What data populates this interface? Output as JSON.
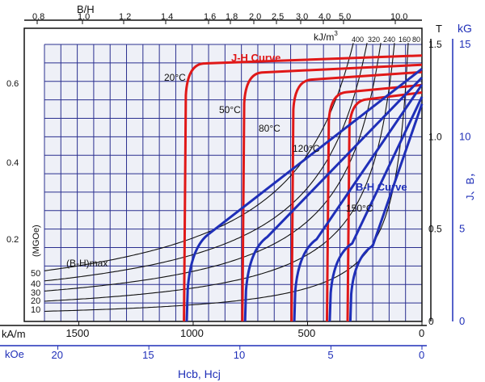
{
  "chart_data": {
    "type": "line",
    "x_axis": {
      "unit_kAm_label": "kA/m",
      "unit_kOe_label": "kOe",
      "title": "Hcb, Hcj",
      "range_kAm": [
        1650,
        0
      ],
      "ticks_kAm": [
        "1500",
        "1000",
        "500",
        "0"
      ],
      "ticks_kOe": [
        "20",
        "15",
        "10",
        "5",
        "0"
      ]
    },
    "y_axis_right": {
      "unit_T": "T",
      "unit_kG": "kG",
      "title": "J、B，",
      "range_T": [
        0,
        1.5
      ],
      "ticks_T": [
        "0",
        "0.5",
        "1.0",
        "1.5"
      ],
      "ticks_kG": [
        "0",
        "5",
        "10",
        "15"
      ]
    },
    "y_axis_left": {
      "title": "(MGOe)",
      "ticks": [
        "0.2",
        "0.4",
        "0.6"
      ]
    },
    "top_axis": {
      "title": "B/H",
      "ticks": [
        "0.8",
        "1.0",
        "1.2",
        "1.4",
        "1.6",
        "1.8",
        "2.0",
        "2.5",
        "3.0",
        "4.0",
        "5.0",
        "10.0"
      ]
    },
    "energy_product": {
      "label": "(B-H)max",
      "unit_prefix": "kJ/m",
      "unit_sup": "3",
      "left_ticks": [
        "50",
        "40",
        "30",
        "20",
        "10"
      ],
      "top_ticks": [
        "400",
        "320",
        "240",
        "160",
        "80"
      ],
      "values_kJm3": [
        400,
        320,
        240,
        160,
        80
      ]
    },
    "legend": {
      "jh_label": "J-H Curve",
      "bh_label": "B-H Curve"
    },
    "series": [
      {
        "name": "20°C",
        "temp_label": "20°C",
        "hcj_kAm": 1040,
        "br_T": 1.44,
        "color_jh": "#e01818",
        "color_bh": "#1f2fb8"
      },
      {
        "name": "50°C",
        "temp_label": "50°C",
        "hcj_kAm": 785,
        "br_T": 1.39,
        "color_jh": "#e01818",
        "color_bh": "#1f2fb8"
      },
      {
        "name": "80°C",
        "temp_label": "80°C",
        "hcj_kAm": 570,
        "br_T": 1.35,
        "color_jh": "#e01818",
        "color_bh": "#1f2fb8"
      },
      {
        "name": "120°C",
        "temp_label": "120°C",
        "hcj_kAm": 415,
        "br_T": 1.28,
        "color_jh": "#e01818",
        "color_bh": "#1f2fb8"
      },
      {
        "name": "150°C",
        "temp_label": "150°C",
        "hcj_kAm": 325,
        "br_T": 1.24,
        "color_jh": "#e01818",
        "color_bh": "#1f2fb8"
      }
    ],
    "grid": true,
    "colors": {
      "grid": "#2a2f8f",
      "red": "#e01818",
      "blue": "#1f2fb8",
      "black": "#111111"
    }
  }
}
